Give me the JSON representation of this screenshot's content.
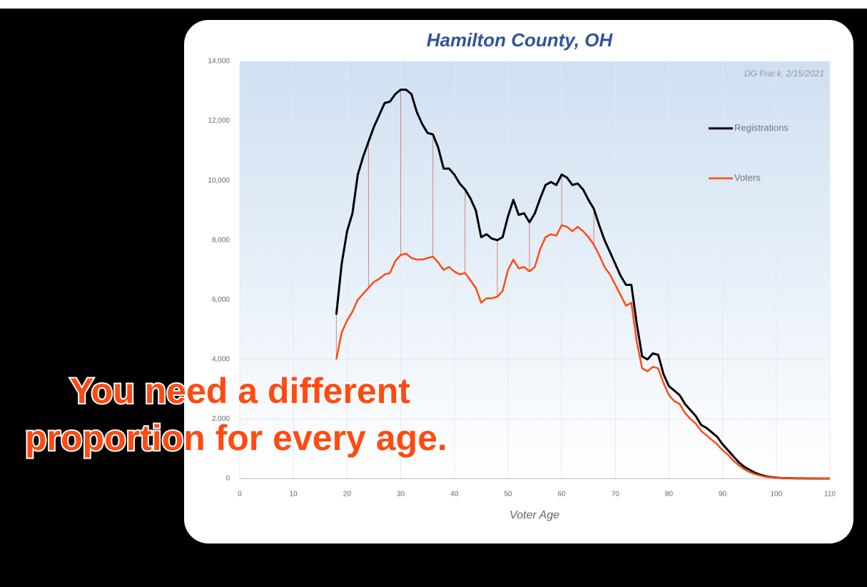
{
  "chart_data": {
    "type": "line",
    "title": "Hamilton County, OH",
    "x_label": "Voter Age",
    "annotations": [
      "DG Frank, 2/15/2021",
      "You need a different",
      "proportion for every age."
    ],
    "x": [
      18,
      19,
      20,
      21,
      22,
      23,
      24,
      25,
      26,
      27,
      28,
      29,
      30,
      31,
      32,
      33,
      34,
      35,
      36,
      37,
      38,
      39,
      40,
      41,
      42,
      43,
      44,
      45,
      46,
      47,
      48,
      49,
      50,
      51,
      52,
      53,
      54,
      55,
      56,
      57,
      58,
      59,
      60,
      61,
      62,
      63,
      64,
      65,
      66,
      67,
      68,
      69,
      70,
      71,
      72,
      73,
      74,
      75,
      76,
      77,
      78,
      79,
      80,
      81,
      82,
      83,
      84,
      85,
      86,
      87,
      88,
      89,
      90,
      91,
      92,
      93,
      94,
      95,
      96,
      97,
      98,
      99,
      100,
      101,
      102,
      103,
      104,
      105,
      106,
      107,
      108,
      109,
      110
    ],
    "series": [
      {
        "name": "Registrations",
        "color": "#000000",
        "values": [
          5500,
          7200,
          8300,
          8900,
          10200,
          10800,
          11300,
          11800,
          12200,
          12600,
          12650,
          12900,
          13050,
          13050,
          12900,
          12300,
          11900,
          11600,
          11550,
          11100,
          10400,
          10400,
          10200,
          9900,
          9700,
          9400,
          9000,
          8100,
          8200,
          8050,
          8000,
          8100,
          8800,
          9350,
          8850,
          8900,
          8600,
          8900,
          9400,
          9850,
          9950,
          9850,
          10200,
          10100,
          9850,
          9900,
          9700,
          9350,
          9050,
          8500,
          8000,
          7600,
          7200,
          6800,
          6500,
          6500,
          5200,
          4100,
          4000,
          4200,
          4150,
          3500,
          3100,
          2950,
          2800,
          2500,
          2300,
          2100,
          1800,
          1700,
          1550,
          1400,
          1150,
          950,
          750,
          550,
          400,
          300,
          200,
          130,
          80,
          50,
          30,
          20,
          15,
          10,
          5,
          5,
          3,
          2,
          1,
          0,
          0
        ]
      },
      {
        "name": "Voters",
        "color": "#ff4a12",
        "values": [
          4000,
          4900,
          5300,
          5600,
          6000,
          6200,
          6400,
          6600,
          6700,
          6850,
          6900,
          7300,
          7500,
          7550,
          7400,
          7350,
          7350,
          7400,
          7450,
          7250,
          7000,
          7100,
          6950,
          6850,
          6900,
          6650,
          6400,
          5900,
          6050,
          6050,
          6100,
          6300,
          7000,
          7350,
          7050,
          7100,
          6950,
          7100,
          7700,
          8100,
          8200,
          8150,
          8500,
          8450,
          8300,
          8450,
          8300,
          8100,
          7850,
          7500,
          7100,
          6850,
          6500,
          6150,
          5800,
          5900,
          4600,
          3700,
          3600,
          3750,
          3700,
          3200,
          2800,
          2600,
          2500,
          2200,
          2000,
          1850,
          1600,
          1450,
          1300,
          1150,
          950,
          800,
          600,
          450,
          320,
          220,
          150,
          100,
          60,
          40,
          25,
          15,
          10,
          8,
          4,
          3,
          2,
          1,
          1,
          0,
          0
        ]
      }
    ],
    "xlim": [
      0,
      110
    ],
    "xticks": [
      0,
      10,
      20,
      30,
      40,
      50,
      60,
      70,
      80,
      90,
      100,
      110
    ],
    "ylim": [
      0,
      14000
    ],
    "yticks": [
      0,
      {
        "value": 2000,
        "label": "2,000"
      },
      {
        "value": 4000,
        "label": "4,000"
      },
      {
        "value": 6000,
        "label": "6,000"
      },
      {
        "value": 8000,
        "label": "8,000"
      },
      {
        "value": 10000,
        "label": "10,000"
      },
      {
        "value": 12000,
        "label": "12,000"
      },
      {
        "value": 14000,
        "label": "14,000"
      }
    ],
    "grid": true,
    "legend": "right"
  }
}
